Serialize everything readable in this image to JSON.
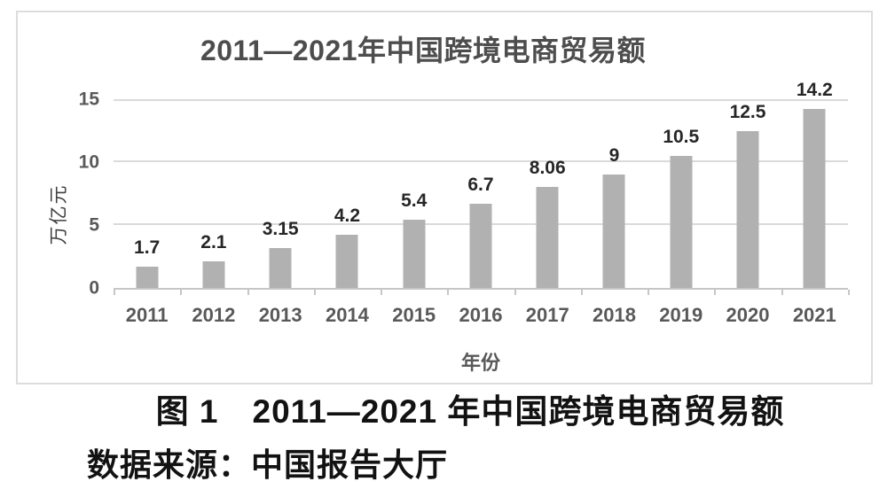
{
  "chart_data": {
    "type": "bar",
    "title": "2011—2021年中国跨境电商贸易额",
    "xlabel": "年份",
    "ylabel": "万亿元",
    "categories": [
      "2011",
      "2012",
      "2013",
      "2014",
      "2015",
      "2016",
      "2017",
      "2018",
      "2019",
      "2020",
      "2021"
    ],
    "values": [
      1.7,
      2.1,
      3.15,
      4.2,
      5.4,
      6.7,
      8.06,
      9,
      10.5,
      12.5,
      14.2
    ],
    "data_labels": [
      "1.7",
      "2.1",
      "3.15",
      "4.2",
      "5.4",
      "6.7",
      "8.06",
      "9",
      "10.5",
      "12.5",
      "14.2"
    ],
    "yticks": [
      0,
      5,
      10,
      15
    ],
    "ylim": [
      0,
      15
    ],
    "grid": true,
    "legend": "none",
    "bar_color": "#b1b1b1",
    "gridline_color": "#dadada",
    "axis_color": "#c6c6c6",
    "label_color": "#262626",
    "tick_label_color": "#595959"
  },
  "caption": {
    "figure_label": "图 1　2011—2021 年中国跨境电商贸易额",
    "source": "数据来源：中国报告大厅"
  }
}
